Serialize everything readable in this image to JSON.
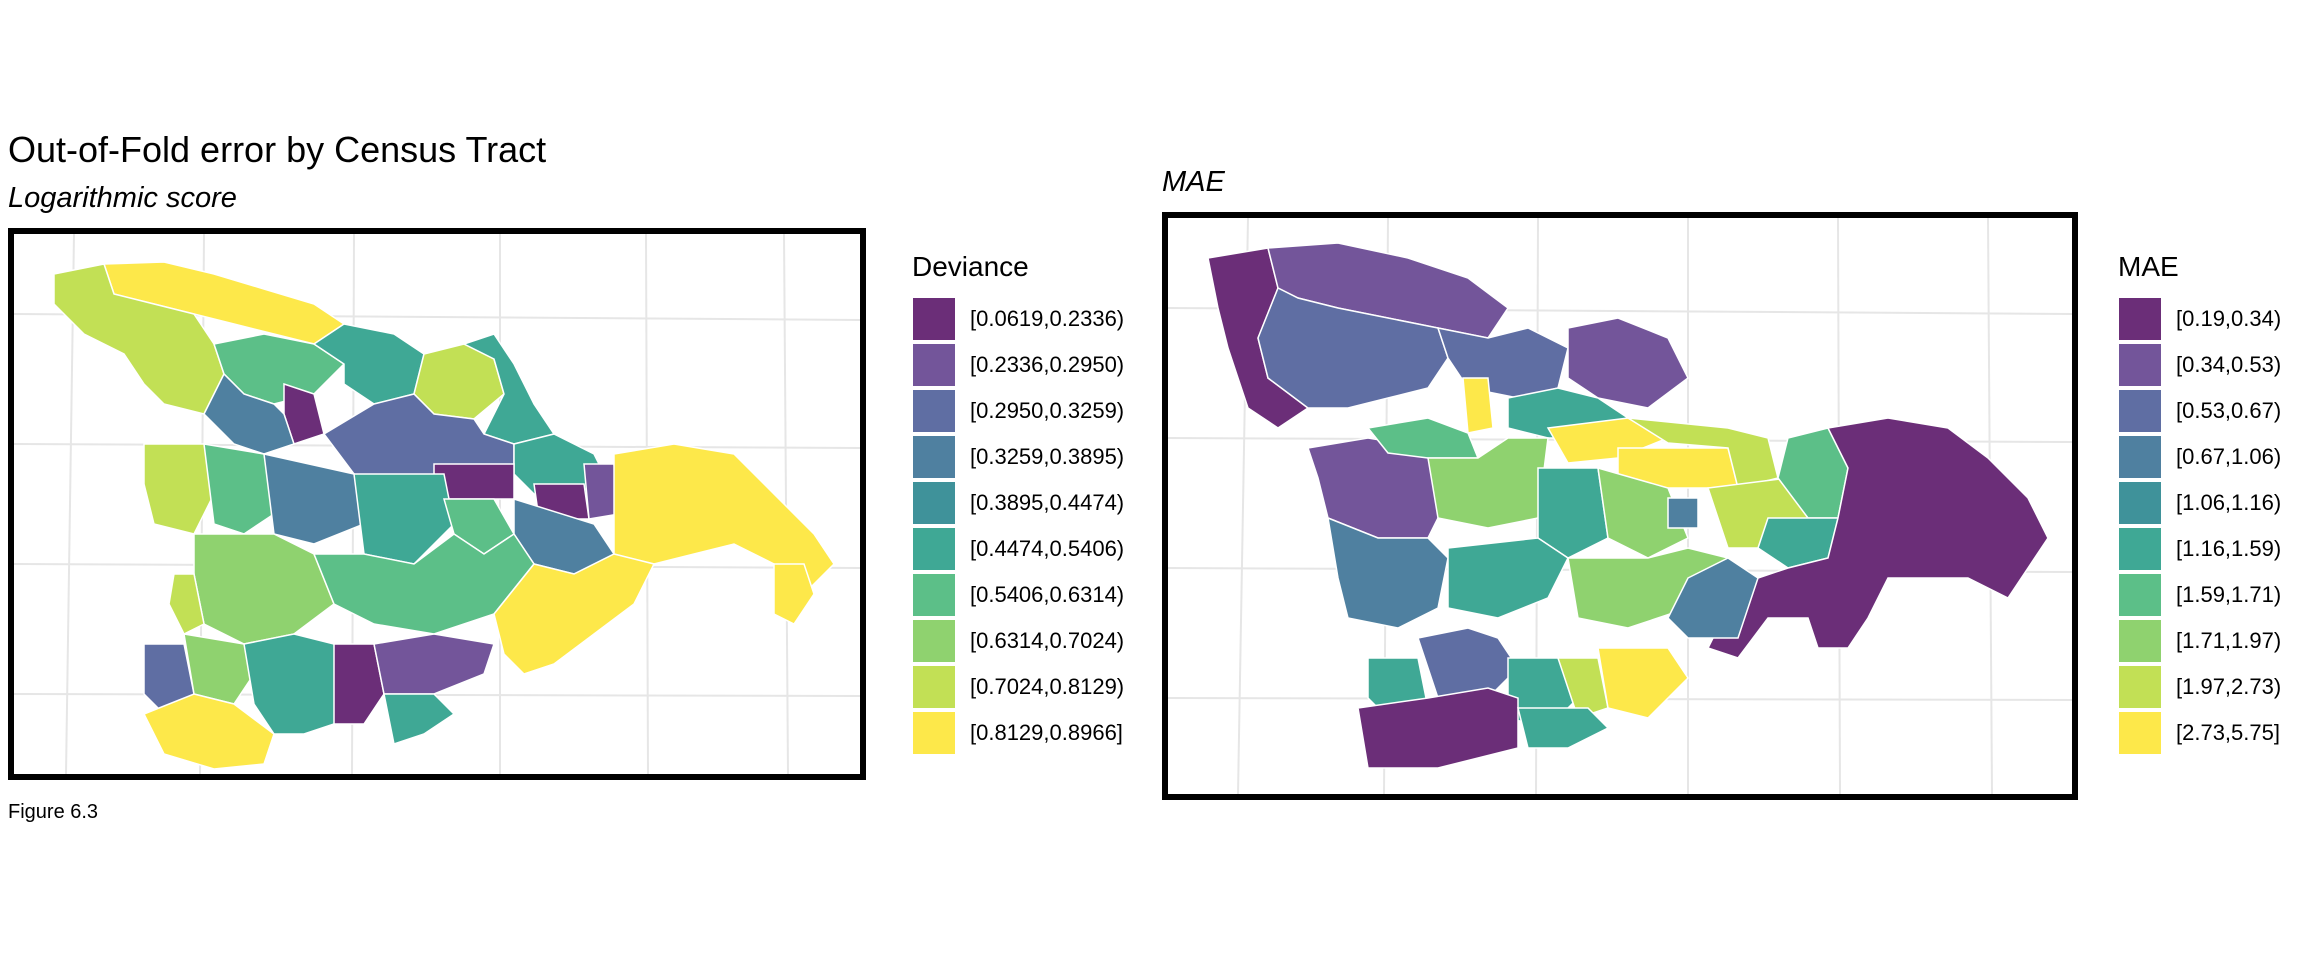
{
  "main_title": "Out-of-Fold error by Census Tract",
  "left_map": {
    "subtitle": "Logarithmic score",
    "legend": {
      "title": "Deviance",
      "items": [
        {
          "label": "[0.0619,0.2336)",
          "color": "#6b2e78"
        },
        {
          "label": "[0.2336,0.2950)",
          "color": "#73559a"
        },
        {
          "label": "[0.2950,0.3259)",
          "color": "#5f6ea3"
        },
        {
          "label": "[0.3259,0.3895)",
          "color": "#4f80a0"
        },
        {
          "label": "[0.3895,0.4474)",
          "color": "#3f929a"
        },
        {
          "label": "[0.4474,0.5406)",
          "color": "#3fa895"
        },
        {
          "label": "[0.5406,0.6314)",
          "color": "#5cbf88"
        },
        {
          "label": "[0.6314,0.7024)",
          "color": "#8fd26f"
        },
        {
          "label": "[0.7024,0.8129)",
          "color": "#c2e055"
        },
        {
          "label": "[0.8129,0.8966]",
          "color": "#fde84a"
        }
      ]
    }
  },
  "right_map": {
    "subtitle": "MAE",
    "legend": {
      "title": "MAE",
      "items": [
        {
          "label": "[0.19,0.34)",
          "color": "#6b2e78"
        },
        {
          "label": "[0.34,0.53)",
          "color": "#73559a"
        },
        {
          "label": "[0.53,0.67)",
          "color": "#5f6ea3"
        },
        {
          "label": "[0.67,1.06)",
          "color": "#4f80a0"
        },
        {
          "label": "[1.06,1.16)",
          "color": "#3f929a"
        },
        {
          "label": "[1.16,1.59)",
          "color": "#3fa895"
        },
        {
          "label": "[1.59,1.71)",
          "color": "#5cbf88"
        },
        {
          "label": "[1.71,1.97)",
          "color": "#8fd26f"
        },
        {
          "label": "[1.97,2.73)",
          "color": "#c2e055"
        },
        {
          "label": "[2.73,5.75]",
          "color": "#fde84a"
        }
      ]
    }
  },
  "caption": "Figure 6.3"
}
